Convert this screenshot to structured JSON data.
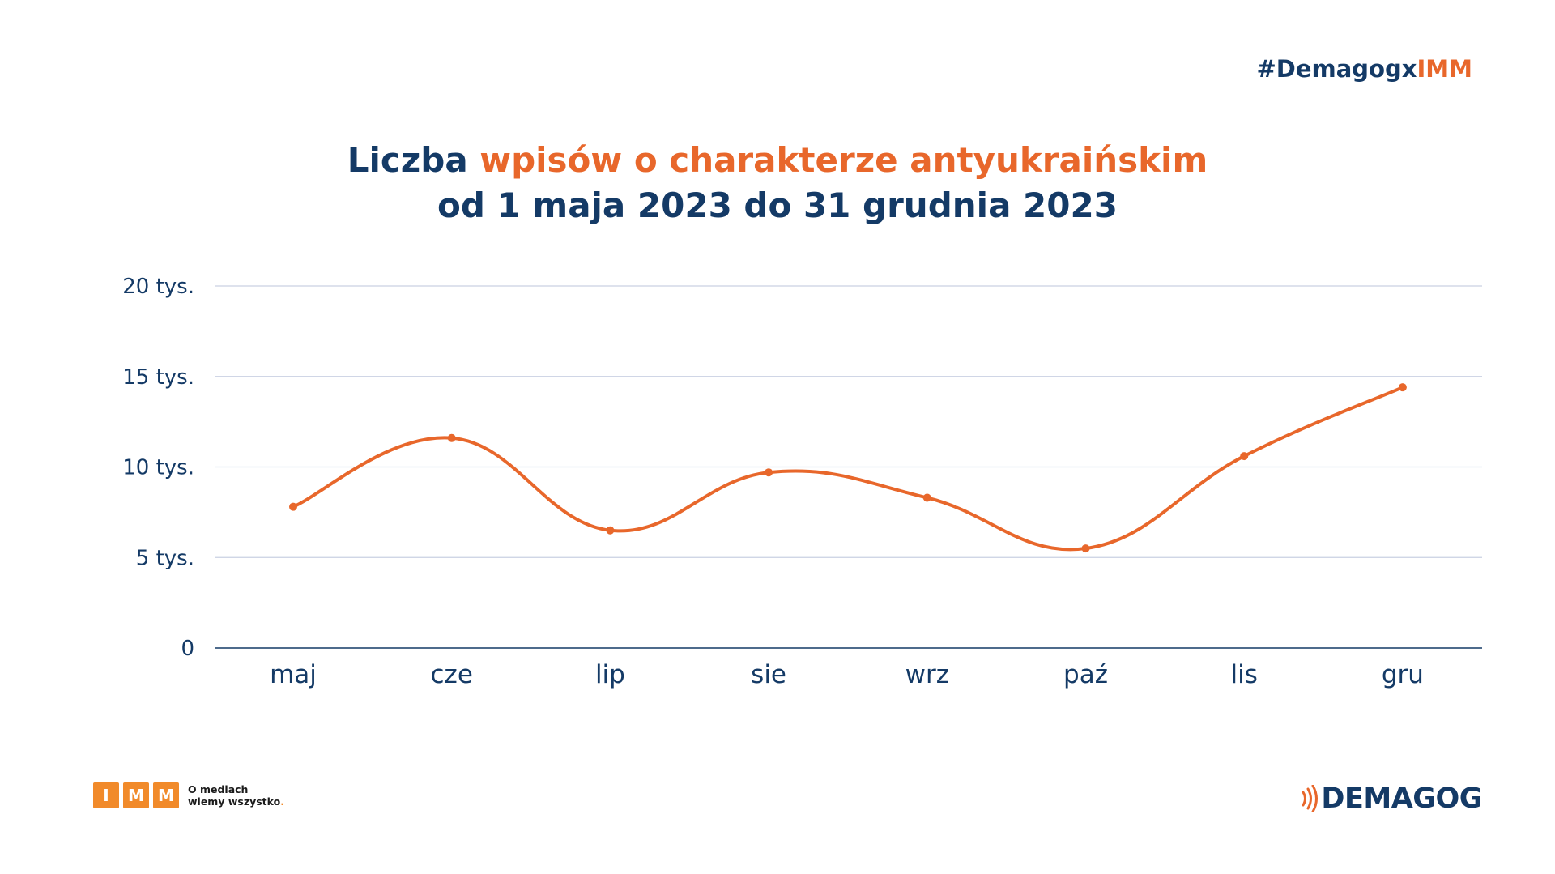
{
  "hashtag": {
    "prefix": "#Demagog",
    "x": "x",
    "suffix": "IMM"
  },
  "title": {
    "line1_part1": "Liczba ",
    "line1_part2": "wpisów o charakterze antyukraińskim",
    "line2": "od 1 maja 2023 do 31 grudnia 2023"
  },
  "colors": {
    "navy": "#143a66",
    "orange": "#e8672b",
    "grid": "#c9d1e2",
    "imm_orange": "#f18a2a"
  },
  "chart_data": {
    "type": "line",
    "categories": [
      "maj",
      "cze",
      "lip",
      "sie",
      "wrz",
      "paź",
      "lis",
      "gru"
    ],
    "series": [
      {
        "values": [
          7800,
          11600,
          6500,
          9700,
          8300,
          5500,
          10600,
          14400
        ]
      }
    ],
    "ylim": [
      0,
      20000
    ],
    "yticks": [
      0,
      5000,
      10000,
      15000,
      20000
    ],
    "ytick_labels": [
      "0",
      "5 tys.",
      "10 tys.",
      "15 tys.",
      "20 tys."
    ],
    "xlabel": "",
    "ylabel": "",
    "grid": true,
    "smooth": true
  },
  "footer": {
    "imm_letters": [
      "I",
      "M",
      "M"
    ],
    "imm_tagline_1": "O mediach",
    "imm_tagline_2": "wiemy wszystko",
    "imm_tagline_dot": ".",
    "demagog": "DEMAGOG"
  }
}
